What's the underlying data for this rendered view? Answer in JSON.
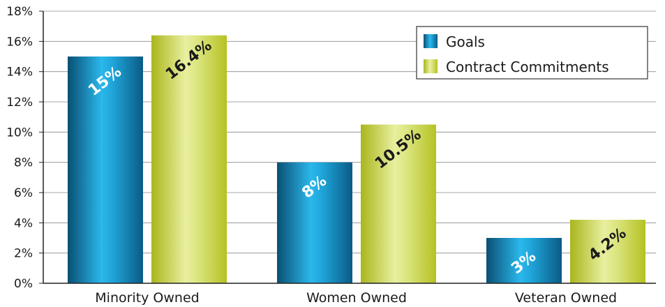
{
  "chart_data": {
    "type": "bar",
    "categories": [
      "Minority Owned",
      "Women Owned",
      "Veteran Owned"
    ],
    "series": [
      {
        "name": "Goals",
        "values": [
          15,
          8,
          3
        ],
        "labels": [
          "15%",
          "8%",
          "3%"
        ],
        "label_color": "#ffffff"
      },
      {
        "name": "Contract Commitments",
        "values": [
          16.4,
          10.5,
          4.2
        ],
        "labels": [
          "16.4%",
          "10.5%",
          "4.2%"
        ],
        "label_color": "#1a1a1a"
      }
    ],
    "y_ticks": [
      0,
      2,
      4,
      6,
      8,
      10,
      12,
      14,
      16,
      18
    ],
    "y_tick_labels": [
      "0%",
      "2%",
      "4%",
      "6%",
      "8%",
      "10%",
      "12%",
      "14%",
      "16%",
      "18%"
    ],
    "ylim": [
      0,
      18
    ],
    "grid": true,
    "legend_position": "top-right",
    "colors": {
      "goals_dark": "#0a5f87",
      "goals_light": "#1fb0e6",
      "commit_dark": "#b8c425",
      "commit_light": "#e8ee9c",
      "grid": "#8a8a8a",
      "axis": "#222222"
    }
  }
}
